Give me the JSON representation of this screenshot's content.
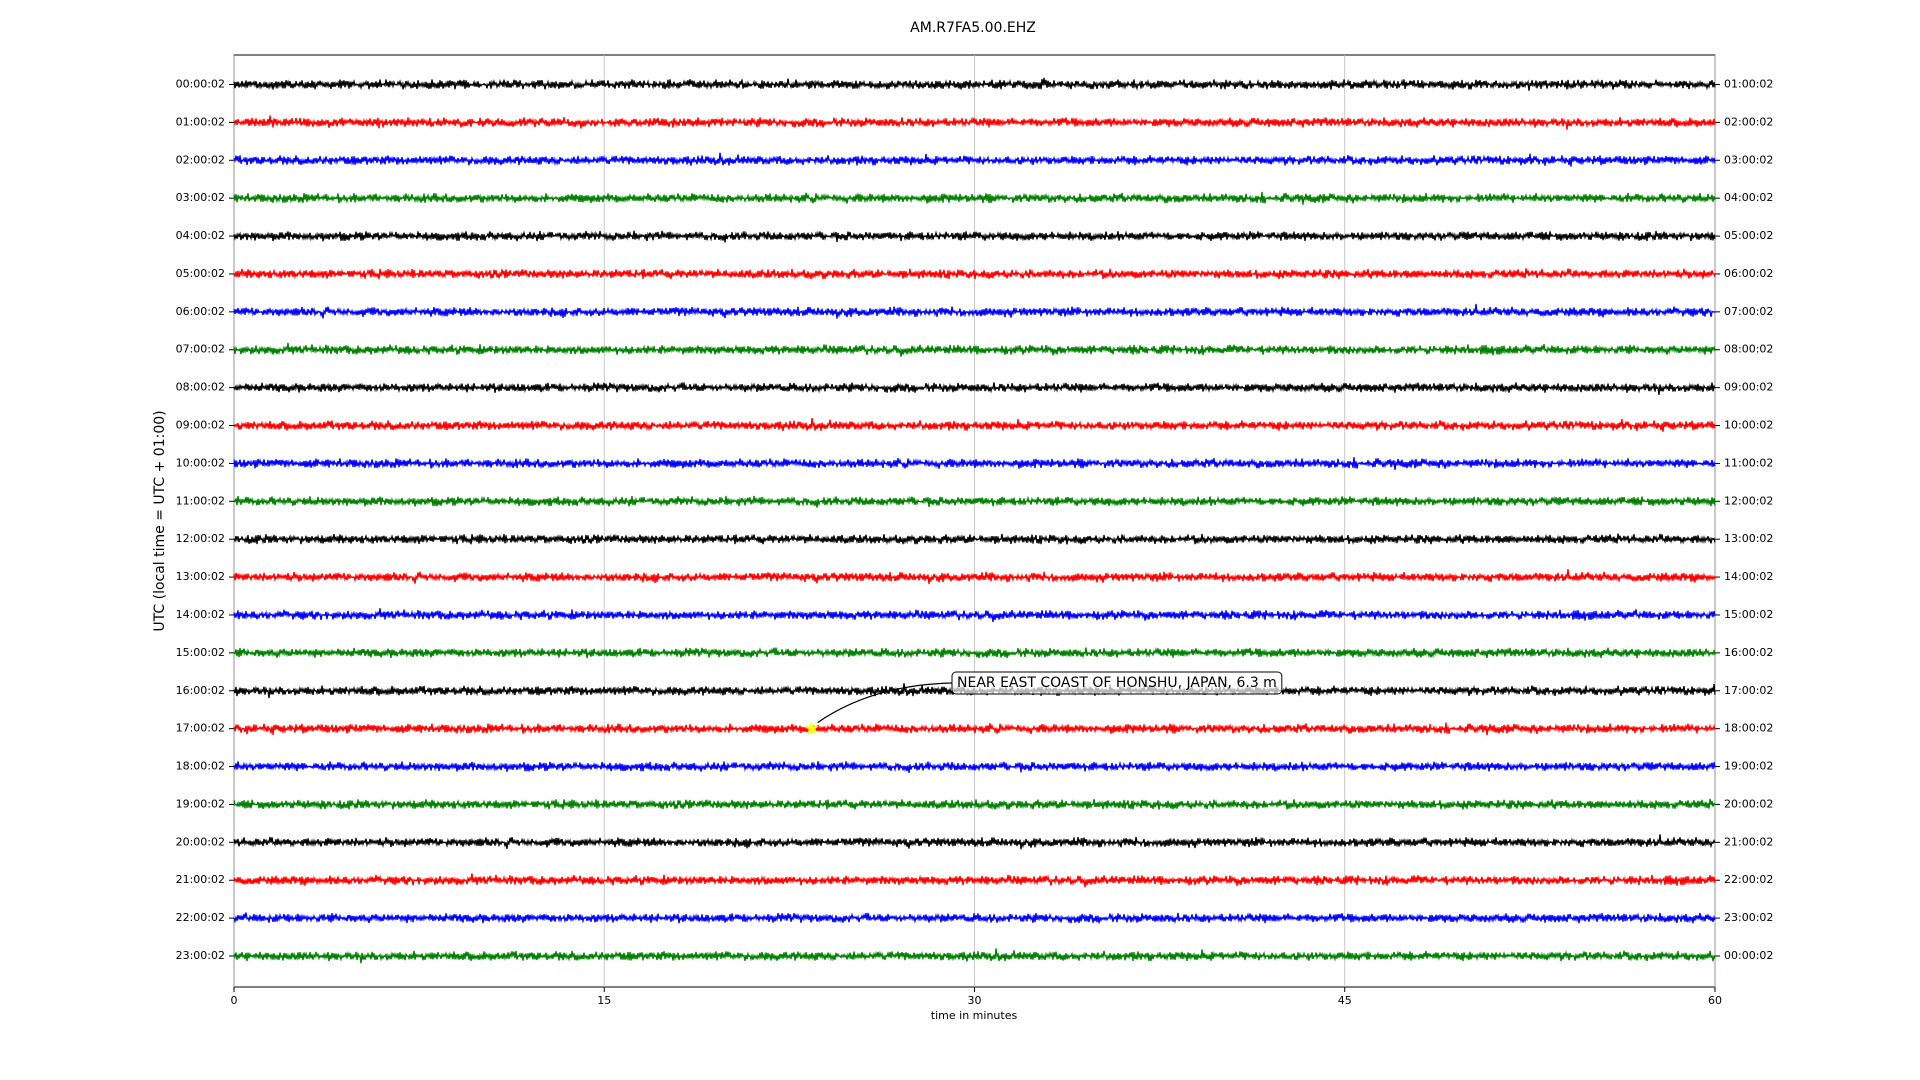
{
  "chart_data": {
    "type": "dayplot",
    "title": "AM.R7FA5.00.EHZ",
    "x_label": "time in minutes",
    "y_label": "UTC (local time = UTC + 01:00)",
    "xlim": [
      0,
      60
    ],
    "xticks": [
      0,
      15,
      30,
      45,
      60
    ],
    "grid": true,
    "rows": [
      {
        "label": "00:00:02",
        "right_label": "01:00:02",
        "color": "black"
      },
      {
        "label": "01:00:02",
        "right_label": "02:00:02",
        "color": "red"
      },
      {
        "label": "02:00:02",
        "right_label": "03:00:02",
        "color": "blue"
      },
      {
        "label": "03:00:02",
        "right_label": "04:00:02",
        "color": "green"
      },
      {
        "label": "04:00:02",
        "right_label": "05:00:02",
        "color": "black"
      },
      {
        "label": "05:00:02",
        "right_label": "06:00:02",
        "color": "red"
      },
      {
        "label": "06:00:02",
        "right_label": "07:00:02",
        "color": "blue"
      },
      {
        "label": "07:00:02",
        "right_label": "08:00:02",
        "color": "green"
      },
      {
        "label": "08:00:02",
        "right_label": "09:00:02",
        "color": "black"
      },
      {
        "label": "09:00:02",
        "right_label": "10:00:02",
        "color": "red"
      },
      {
        "label": "10:00:02",
        "right_label": "11:00:02",
        "color": "blue"
      },
      {
        "label": "11:00:02",
        "right_label": "12:00:02",
        "color": "green"
      },
      {
        "label": "12:00:02",
        "right_label": "13:00:02",
        "color": "black"
      },
      {
        "label": "13:00:02",
        "right_label": "14:00:02",
        "color": "red"
      },
      {
        "label": "14:00:02",
        "right_label": "15:00:02",
        "color": "blue"
      },
      {
        "label": "15:00:02",
        "right_label": "16:00:02",
        "color": "green"
      },
      {
        "label": "16:00:02",
        "right_label": "17:00:02",
        "color": "black"
      },
      {
        "label": "17:00:02",
        "right_label": "18:00:02",
        "color": "red",
        "event": {
          "text": "NEAR EAST COAST OF HONSHU, JAPAN, 6.3 m",
          "x": 23.4
        }
      },
      {
        "label": "18:00:02",
        "right_label": "19:00:02",
        "color": "blue"
      },
      {
        "label": "19:00:02",
        "right_label": "20:00:02",
        "color": "green"
      },
      {
        "label": "20:00:02",
        "right_label": "21:00:02",
        "color": "black"
      },
      {
        "label": "21:00:02",
        "right_label": "22:00:02",
        "color": "red"
      },
      {
        "label": "22:00:02",
        "right_label": "23:00:02",
        "color": "blue"
      },
      {
        "label": "23:00:02",
        "right_label": "00:00:02",
        "color": "green"
      }
    ]
  }
}
